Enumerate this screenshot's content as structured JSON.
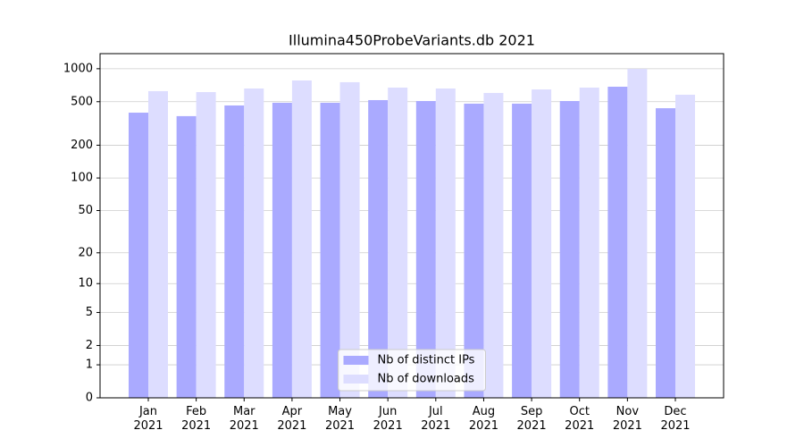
{
  "chart_data": {
    "type": "bar",
    "title": "Illumina450ProbeVariants.db 2021",
    "categories": [
      "Jan\n2021",
      "Feb\n2021",
      "Mar\n2021",
      "Apr\n2021",
      "May\n2021",
      "Jun\n2021",
      "Jul\n2021",
      "Aug\n2021",
      "Sep\n2021",
      "Oct\n2021",
      "Nov\n2021",
      "Dec\n2021"
    ],
    "series": [
      {
        "name": "Nb of distinct IPs",
        "color": "#aaaaff",
        "values": [
          397,
          369,
          462,
          489,
          489,
          517,
          507,
          480,
          480,
          507,
          685,
          436
        ]
      },
      {
        "name": "Nb of downloads",
        "color": "#ddddff",
        "values": [
          624,
          612,
          660,
          781,
          753,
          673,
          660,
          601,
          647,
          673,
          997,
          579
        ]
      }
    ],
    "yscale": "log1p",
    "ylim": [
      0,
      1373
    ],
    "yticks": [
      0,
      1,
      2,
      5,
      10,
      20,
      50,
      100,
      200,
      500,
      1000
    ],
    "grid": true,
    "legend": "lower center"
  }
}
